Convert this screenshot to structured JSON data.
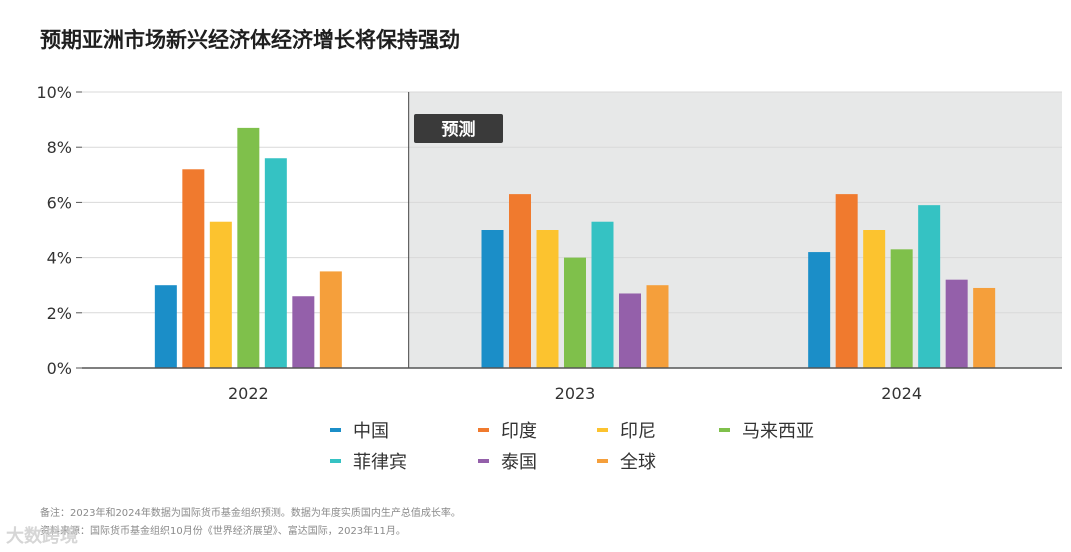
{
  "title": "预期亚洲市场新兴经济体经济增长将保持强劲",
  "forecast_label": "预测",
  "notes": {
    "line1": "备注：2023年和2024年数据为国际货币基金组织预测。数据为年度实质国内生产总值成长率。",
    "line2": "资料来源：国际货币基金组织10月份《世界经济展望》、富达国际，2023年11月。"
  },
  "watermark": "大数跨境",
  "colors": {
    "forecast_bg": "#e7e8e8",
    "grid": "#d9d9d9",
    "axis": "#555555",
    "forecast_label_bg": "#3a3a3a"
  },
  "chart_data": {
    "type": "bar",
    "categories": [
      "2022",
      "2023",
      "2024"
    ],
    "ylim": [
      0,
      10
    ],
    "yticks": [
      0,
      2,
      4,
      6,
      8,
      10
    ],
    "ytick_labels": [
      "0%",
      "2%",
      "4%",
      "6%",
      "8%",
      "10%"
    ],
    "legend_position": "bottom",
    "grid": true,
    "series": [
      {
        "name": "中国",
        "color": "#1b8ec8",
        "values": [
          3.0,
          5.0,
          4.2
        ]
      },
      {
        "name": "印度",
        "color": "#f07a2e",
        "values": [
          7.2,
          6.3,
          6.3
        ]
      },
      {
        "name": "印尼",
        "color": "#fcc32f",
        "values": [
          5.3,
          5.0,
          5.0
        ]
      },
      {
        "name": "马来西亚",
        "color": "#7fc04b",
        "values": [
          8.7,
          4.0,
          4.3
        ]
      },
      {
        "name": "菲律宾",
        "color": "#35c2c3",
        "values": [
          7.6,
          5.3,
          5.9
        ]
      },
      {
        "name": "泰国",
        "color": "#9460aa",
        "values": [
          2.6,
          2.7,
          3.2
        ]
      },
      {
        "name": "全球",
        "color": "#f59f3b",
        "values": [
          3.5,
          3.0,
          2.9
        ]
      }
    ]
  }
}
